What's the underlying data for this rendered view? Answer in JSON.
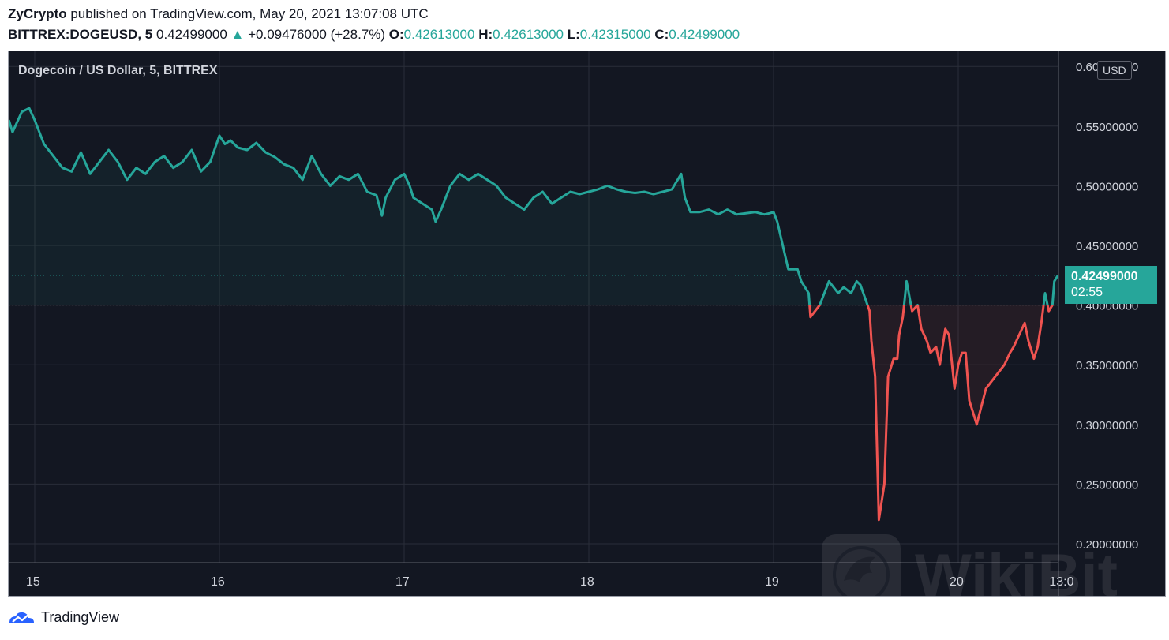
{
  "header": {
    "author": "ZyCrypto",
    "published_text": " published on TradingView.com, May 20, 2021 13:07:08 UTC",
    "symbol": "BITTREX:DOGEUSD, 5",
    "last_price": "0.42499000",
    "change_arrow": "▲",
    "change": "+0.09476000 (+28.7%)",
    "open_label": "O:",
    "open": "0.42613000",
    "high_label": "H:",
    "high": "0.42613000",
    "low_label": "L:",
    "low": "0.42315000",
    "close_label": "C:",
    "close": "0.42499000"
  },
  "chart_title": "Dogecoin / US Dollar, 5, BITTREX",
  "currency_badge": "USD",
  "last_tag": {
    "price": "0.42499000",
    "countdown": "02:55"
  },
  "footer": {
    "brand": "TradingView",
    "logo_icon": "tradingview-logo-icon"
  },
  "watermark": "WikiBit",
  "colors": {
    "background": "#131722",
    "up": "#26a69a",
    "down": "#ef5350",
    "grid": "#2a2e39",
    "text": "#d1d4dc"
  },
  "chart_data": {
    "type": "line",
    "title": "Dogecoin / US Dollar, 5, BITTREX",
    "baseline": 0.4,
    "ylim": [
      0.19,
      0.61
    ],
    "xlim": [
      14.86,
      20.54
    ],
    "y_ticks": [
      0.2,
      0.25,
      0.3,
      0.35,
      0.4,
      0.45,
      0.5,
      0.55,
      0.6
    ],
    "y_tick_labels": [
      "0.20000000",
      "0.25000000",
      "0.30000000",
      "0.35000000",
      "0.40000000",
      "0.45000000",
      "0.50000000",
      "0.55000000",
      "0.60000000"
    ],
    "x_ticks": [
      15,
      16,
      17,
      18,
      19,
      20,
      20.54
    ],
    "x_tick_labels": [
      "15",
      "16",
      "17",
      "18",
      "19",
      "20",
      "13:0"
    ],
    "last_price": 0.42499,
    "series": [
      {
        "x": [
          14.86,
          14.88,
          14.93,
          14.97,
          15.0,
          15.05,
          15.1,
          15.15,
          15.2,
          15.25,
          15.3,
          15.35,
          15.4,
          15.45,
          15.5,
          15.55,
          15.6,
          15.65,
          15.7,
          15.75,
          15.8,
          15.85,
          15.9,
          15.95,
          16.0,
          16.03,
          16.06,
          16.1,
          16.15,
          16.2,
          16.25,
          16.3,
          16.35,
          16.4,
          16.45,
          16.5,
          16.55,
          16.6,
          16.65,
          16.7,
          16.75,
          16.8,
          16.85,
          16.88,
          16.9,
          16.95,
          17.0,
          17.03,
          17.05,
          17.1,
          17.15,
          17.17,
          17.2,
          17.25,
          17.3,
          17.35,
          17.4,
          17.45,
          17.5,
          17.55,
          17.6,
          17.65,
          17.7,
          17.75,
          17.8,
          17.85,
          17.9,
          17.95,
          18.0,
          18.05,
          18.1,
          18.15,
          18.2,
          18.25,
          18.3,
          18.35,
          18.4,
          18.45,
          18.5,
          18.52,
          18.55,
          18.6,
          18.65,
          18.7,
          18.75,
          18.8,
          18.85,
          18.9,
          18.95,
          18.98,
          19.0,
          19.02,
          19.05,
          19.08,
          19.1,
          19.13,
          19.15,
          19.17,
          19.19,
          19.2,
          19.25,
          19.3,
          19.35,
          19.38,
          19.42,
          19.45,
          19.47,
          19.5,
          19.52,
          19.53,
          19.55,
          19.57,
          19.6,
          19.62,
          19.65,
          19.67,
          19.68,
          19.7,
          19.72,
          19.75,
          19.78,
          19.8,
          19.83,
          19.85,
          19.88,
          19.9,
          19.93,
          19.95,
          19.98,
          20.0,
          20.02,
          20.04,
          20.06,
          20.1,
          20.15,
          20.2,
          20.25,
          20.28,
          20.3,
          20.33,
          20.36,
          20.38,
          20.4,
          20.41,
          20.43,
          20.45,
          20.47,
          20.49,
          20.51,
          20.52,
          20.54
        ],
        "values": [
          0.555,
          0.545,
          0.562,
          0.565,
          0.555,
          0.535,
          0.525,
          0.515,
          0.512,
          0.528,
          0.51,
          0.52,
          0.53,
          0.52,
          0.505,
          0.515,
          0.51,
          0.52,
          0.525,
          0.515,
          0.52,
          0.53,
          0.512,
          0.52,
          0.542,
          0.535,
          0.538,
          0.532,
          0.53,
          0.536,
          0.528,
          0.524,
          0.518,
          0.515,
          0.505,
          0.525,
          0.51,
          0.5,
          0.508,
          0.505,
          0.51,
          0.495,
          0.492,
          0.475,
          0.49,
          0.505,
          0.51,
          0.5,
          0.49,
          0.485,
          0.48,
          0.47,
          0.48,
          0.5,
          0.51,
          0.505,
          0.51,
          0.505,
          0.5,
          0.49,
          0.485,
          0.48,
          0.49,
          0.495,
          0.485,
          0.49,
          0.495,
          0.493,
          0.495,
          0.497,
          0.5,
          0.497,
          0.495,
          0.494,
          0.495,
          0.493,
          0.495,
          0.497,
          0.51,
          0.49,
          0.478,
          0.478,
          0.48,
          0.476,
          0.48,
          0.476,
          0.477,
          0.478,
          0.476,
          0.477,
          0.478,
          0.47,
          0.45,
          0.43,
          0.43,
          0.43,
          0.42,
          0.415,
          0.41,
          0.39,
          0.4,
          0.42,
          0.41,
          0.415,
          0.41,
          0.42,
          0.417,
          0.404,
          0.395,
          0.37,
          0.34,
          0.22,
          0.25,
          0.34,
          0.355,
          0.355,
          0.375,
          0.39,
          0.42,
          0.395,
          0.4,
          0.38,
          0.37,
          0.36,
          0.365,
          0.35,
          0.38,
          0.375,
          0.33,
          0.35,
          0.36,
          0.36,
          0.32,
          0.3,
          0.33,
          0.34,
          0.35,
          0.36,
          0.365,
          0.375,
          0.385,
          0.37,
          0.36,
          0.355,
          0.365,
          0.385,
          0.41,
          0.395,
          0.4,
          0.42,
          0.425
        ]
      }
    ]
  }
}
